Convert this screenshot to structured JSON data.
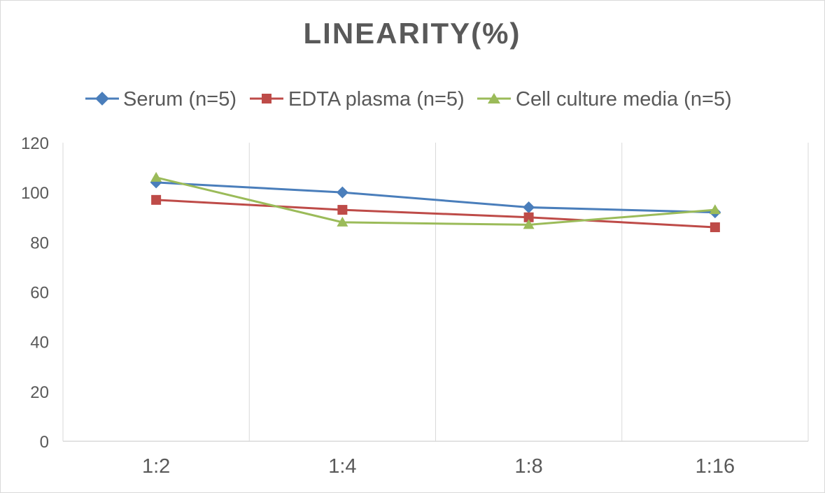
{
  "chart_data": {
    "type": "line",
    "title": "LINEARITY(%)",
    "xlabel": "",
    "ylabel": "",
    "categories": [
      "1:2",
      "1:4",
      "1:8",
      "1:16"
    ],
    "ylim": [
      0,
      120
    ],
    "yticks": [
      0,
      20,
      40,
      60,
      80,
      100,
      120
    ],
    "grid": "vertical",
    "legend_position": "top",
    "series": [
      {
        "name": "Serum (n=5)",
        "values": [
          104,
          100,
          94,
          92
        ],
        "color": "#4a7ebb",
        "marker": "diamond"
      },
      {
        "name": "EDTA plasma (n=5)",
        "values": [
          97,
          93,
          90,
          86
        ],
        "color": "#be4b48",
        "marker": "square"
      },
      {
        "name": "Cell culture media (n=5)",
        "values": [
          106,
          88,
          87,
          93
        ],
        "color": "#9bbb59",
        "marker": "triangle"
      }
    ]
  }
}
